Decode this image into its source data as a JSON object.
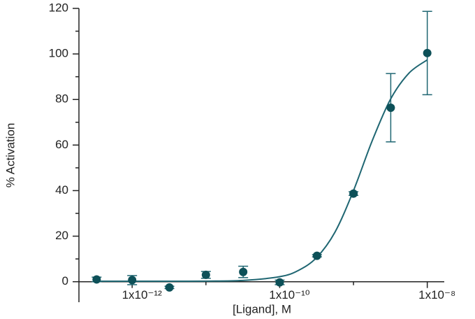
{
  "chart_data": {
    "type": "scatter",
    "xlabel": "[Ligand], M",
    "ylabel": "% Activation",
    "xscale": "log",
    "xlim": [
      1.9e-13,
      1.7e-08
    ],
    "ylim": [
      -9,
      120
    ],
    "xticks": [
      {
        "value": 1e-12,
        "label": "1x10⁻¹²"
      },
      {
        "value": 1e-10,
        "label": "1x10⁻¹⁰"
      },
      {
        "value": 1e-08,
        "label": "1x10⁻⁸"
      }
    ],
    "xminorticks": [
      1e-11,
      1e-09
    ],
    "yticks": [
      0,
      20,
      40,
      60,
      80,
      100,
      120
    ],
    "yminorticks": [
      10,
      30,
      50,
      70,
      90,
      110
    ],
    "color": "#0d5058",
    "line_color": "#1f6672",
    "x": [
      3.3e-13,
      1e-12,
      3.2e-12,
      1e-11,
      3.2e-11,
      1e-10,
      3.2e-10,
      1e-09,
      3.2e-09,
      1e-08
    ],
    "values": [
      1,
      0.7,
      -2.5,
      3,
      4.3,
      -0.3,
      11.4,
      38.7,
      76.4,
      100.4
    ],
    "errors": [
      1,
      2,
      0.5,
      1.5,
      2.5,
      1,
      0.5,
      0.8,
      15,
      18.3
    ],
    "curve": {
      "x": [
        3.16e-13,
        1e-12,
        3.16e-12,
        1e-11,
        3.16e-11,
        1e-10,
        1.78e-10,
        3.16e-10,
        5.62e-10,
        1e-09,
        1.78e-09,
        3.16e-09,
        5.62e-09,
        1e-08
      ],
      "y": [
        0.2,
        0.2,
        0.2,
        0.26,
        0.57,
        2.2,
        4.9,
        10.6,
        21.8,
        40,
        61.6,
        80,
        91.5,
        97.4
      ]
    }
  }
}
